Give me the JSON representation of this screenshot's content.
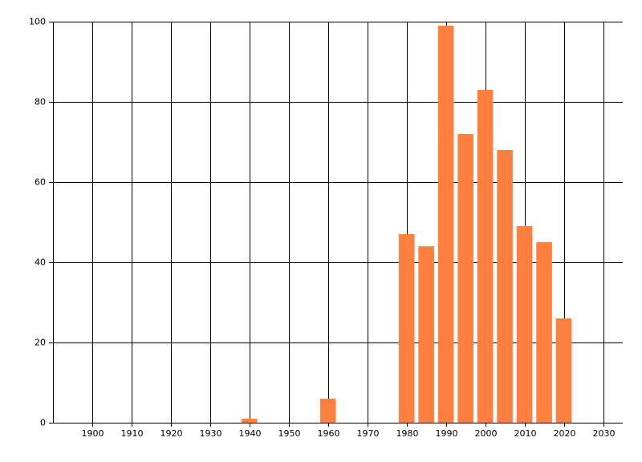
{
  "chart_data": {
    "type": "bar",
    "x": [
      1940,
      1960,
      1980,
      1985,
      1990,
      1995,
      2000,
      2005,
      2010,
      2015,
      2020
    ],
    "values": [
      1,
      6,
      47,
      44,
      99,
      72,
      83,
      68,
      49,
      45,
      26
    ],
    "color": "#ff7f3f",
    "xlim": [
      1890,
      2035
    ],
    "xticks": [
      1900,
      1910,
      1920,
      1930,
      1940,
      1950,
      1960,
      1970,
      1980,
      1990,
      2000,
      2010,
      2020,
      2030
    ],
    "ylim": [
      0,
      100
    ],
    "yticks": [
      0,
      20,
      40,
      60,
      80,
      100
    ],
    "grid": true
  }
}
